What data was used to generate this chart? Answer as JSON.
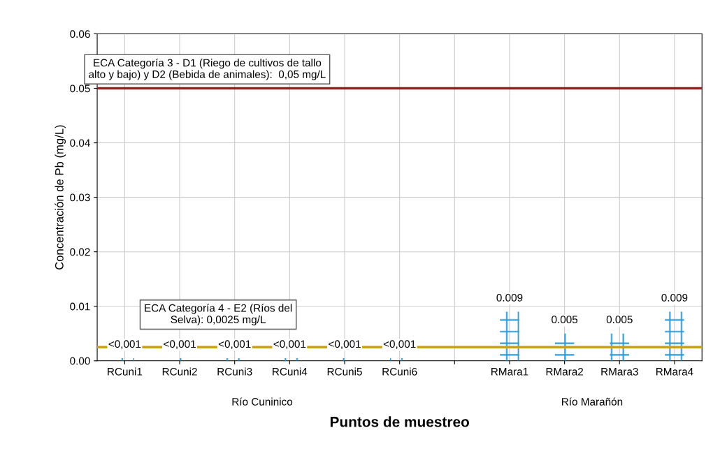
{
  "chart_data": {
    "type": "bar",
    "xlabel": "Puntos de muestreo",
    "ylabel": "Concentración de Pb (mg/L)",
    "categories": [
      "RCuni1",
      "RCuni2",
      "RCuni3",
      "RCuni4",
      "RCuni5",
      "RCuni6",
      null,
      "RMara1",
      "RMara2",
      "RMara3",
      "RMara4"
    ],
    "values": [
      0.0005,
      0.0005,
      0.0005,
      0.0005,
      0.0005,
      0.0005,
      null,
      0.009,
      0.005,
      0.005,
      0.009
    ],
    "value_labels": [
      "<0,001",
      "<0,001",
      "<0,001",
      "<0,001",
      "<0,001",
      "<0,001",
      null,
      "0.009",
      "0.005",
      "0.005",
      "0.009"
    ],
    "color": "#2a9ad8",
    "ylim": [
      0,
      0.06
    ],
    "yticks": [
      {
        "value": 0,
        "label": "0.00"
      },
      {
        "value": 0.01,
        "label": "0.01"
      },
      {
        "value": 0.02,
        "label": "0.02"
      },
      {
        "value": 0.03,
        "label": "0.03"
      },
      {
        "value": 0.04,
        "label": "0.04"
      },
      {
        "value": 0.05,
        "label": "0.05"
      },
      {
        "value": 0.06,
        "label": "0.06"
      }
    ],
    "grid": true,
    "ref_lines": [
      {
        "axis": "y",
        "value": 0.05,
        "label": "ECA Categoría 3 - D1 (Riego de cultivos de tallo\nalto y bajo) y D2 (Bebida de animales):  0,05 mg/L",
        "color": "#a01c1c"
      },
      {
        "axis": "y",
        "value": 0.0025,
        "label": "ECA Categoría 4 - E2 (Ríos del\nSelva): 0,0025 mg/L",
        "color": "#c8a020"
      }
    ],
    "annotations": [
      "Río Cuninico",
      "Río Marañón"
    ]
  }
}
